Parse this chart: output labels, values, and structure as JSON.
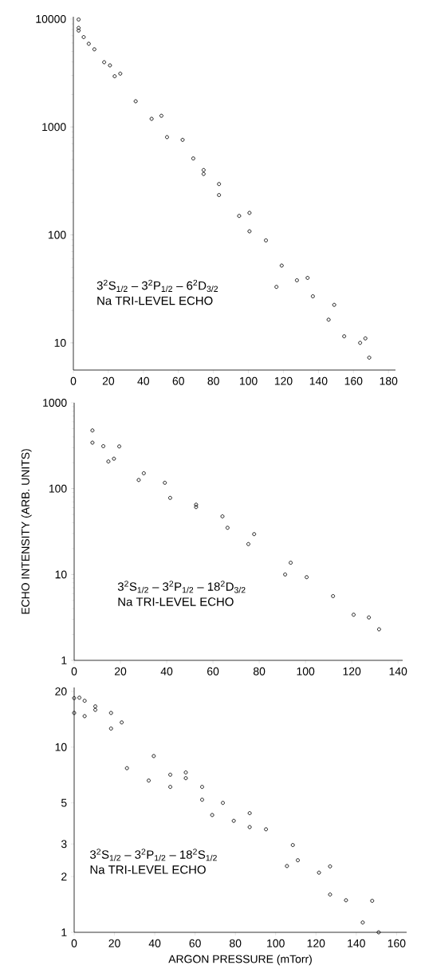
{
  "chart_data": [
    {
      "type": "scatter",
      "log": "y",
      "marker": "circle",
      "color": "#000000",
      "x": [
        3,
        3,
        3,
        5.9,
        8.8,
        12,
        17.6,
        20.9,
        23.6,
        26.8,
        35.6,
        44.7,
        50.3,
        53.5,
        62.4,
        68.5,
        74.4,
        74.4,
        83.2,
        83.2,
        94.7,
        100.6,
        100.6,
        110,
        119,
        116,
        127.7,
        133.8,
        136.8,
        149,
        145.8,
        154.7,
        163.8,
        166.8,
        169
      ],
      "values": [
        9900,
        8270,
        7820,
        6800,
        5900,
        5240,
        3980,
        3720,
        2950,
        3120,
        1730,
        1190,
        1270,
        805,
        760,
        511,
        399,
        367,
        296,
        234,
        150,
        160,
        108,
        89,
        52,
        33,
        38,
        40,
        27,
        22.5,
        16.4,
        11.5,
        10,
        11,
        7.3
      ],
      "xlim": [
        0,
        184
      ],
      "ylim": [
        5.6,
        10500
      ],
      "xticks": [
        0,
        20,
        40,
        60,
        80,
        100,
        120,
        140,
        160,
        180
      ],
      "yticks": [
        10,
        100,
        1000,
        10000
      ],
      "annotations": [
        "3$^{2}$S$_{1/2}$ – 3$^{2}$P$_{1/2}$ – 6$^{2}$D$_{3/2}$",
        "Na TRI-LEVEL ECHO"
      ]
    },
    {
      "type": "scatter",
      "log": "y",
      "marker": "circle",
      "color": "#000000",
      "ylabel": "ECHO INTENSITY (ARB. UNITS)",
      "x": [
        7.9,
        7.9,
        12.6,
        14.8,
        17.2,
        19.5,
        27.9,
        30.1,
        39.2,
        41.5,
        52.7,
        52.7,
        64.1,
        66.3,
        75.3,
        77.8,
        91.2,
        93.6,
        100.5,
        111.9,
        120.8,
        127.4,
        131.8
      ],
      "values": [
        476,
        343,
        312,
        207,
        223,
        310,
        126,
        151,
        117,
        78,
        65,
        61,
        47.5,
        35,
        22.6,
        29.5,
        10,
        13.7,
        9.3,
        5.6,
        3.4,
        3.16,
        2.3
      ],
      "xlim": [
        0,
        142
      ],
      "ylim": [
        1,
        1000
      ],
      "xticks": [
        0,
        20,
        40,
        60,
        80,
        100,
        120,
        140
      ],
      "yticks": [
        1,
        10,
        100,
        1000
      ],
      "annotations": [
        "3$^{2}$S$_{1/2}$ – 3$^{2}$P$_{1/2}$ – 18$^{2}$D$_{3/2}$",
        "Na TRI-LEVEL ECHO"
      ]
    },
    {
      "type": "scatter",
      "log": "y",
      "marker": "circle",
      "color": "#000000",
      "xlabel": "ARGON PRESSURE (mTorr)",
      "x": [
        0,
        2.6,
        5.2,
        0,
        5.2,
        10.5,
        10.5,
        18.3,
        18.3,
        23.6,
        26.2,
        39.5,
        37,
        47.7,
        47.7,
        55.4,
        55.4,
        63.5,
        63.5,
        73.8,
        68.5,
        79.2,
        87.1,
        87.1,
        95.2,
        108.5,
        105.6,
        111,
        121.5,
        127,
        127,
        134.9,
        147.9,
        143.2,
        151.1
      ],
      "values": [
        18.4,
        18.5,
        17.8,
        15.3,
        14.7,
        16.6,
        15.9,
        15.3,
        12.6,
        13.6,
        7.7,
        8.95,
        6.6,
        7.1,
        6.1,
        7.3,
        6.8,
        6.1,
        5.2,
        5.0,
        4.3,
        4.0,
        4.4,
        3.7,
        3.6,
        2.96,
        2.28,
        2.45,
        2.1,
        2.27,
        1.6,
        1.49,
        1.48,
        1.13,
        1.0
      ],
      "xlim": [
        0,
        165
      ],
      "ylim": [
        1,
        21
      ],
      "xticks": [
        0,
        20,
        40,
        60,
        80,
        100,
        120,
        140,
        160
      ],
      "yticks": [
        1,
        2,
        3,
        5,
        10,
        20
      ],
      "annotations": [
        "3$^{2}$S$_{1/2}$ – 3$^{2}$P$_{1/2}$ – 18$^{2}$S$_{1/2}$",
        "Na TRI-LEVEL ECHO"
      ]
    }
  ]
}
